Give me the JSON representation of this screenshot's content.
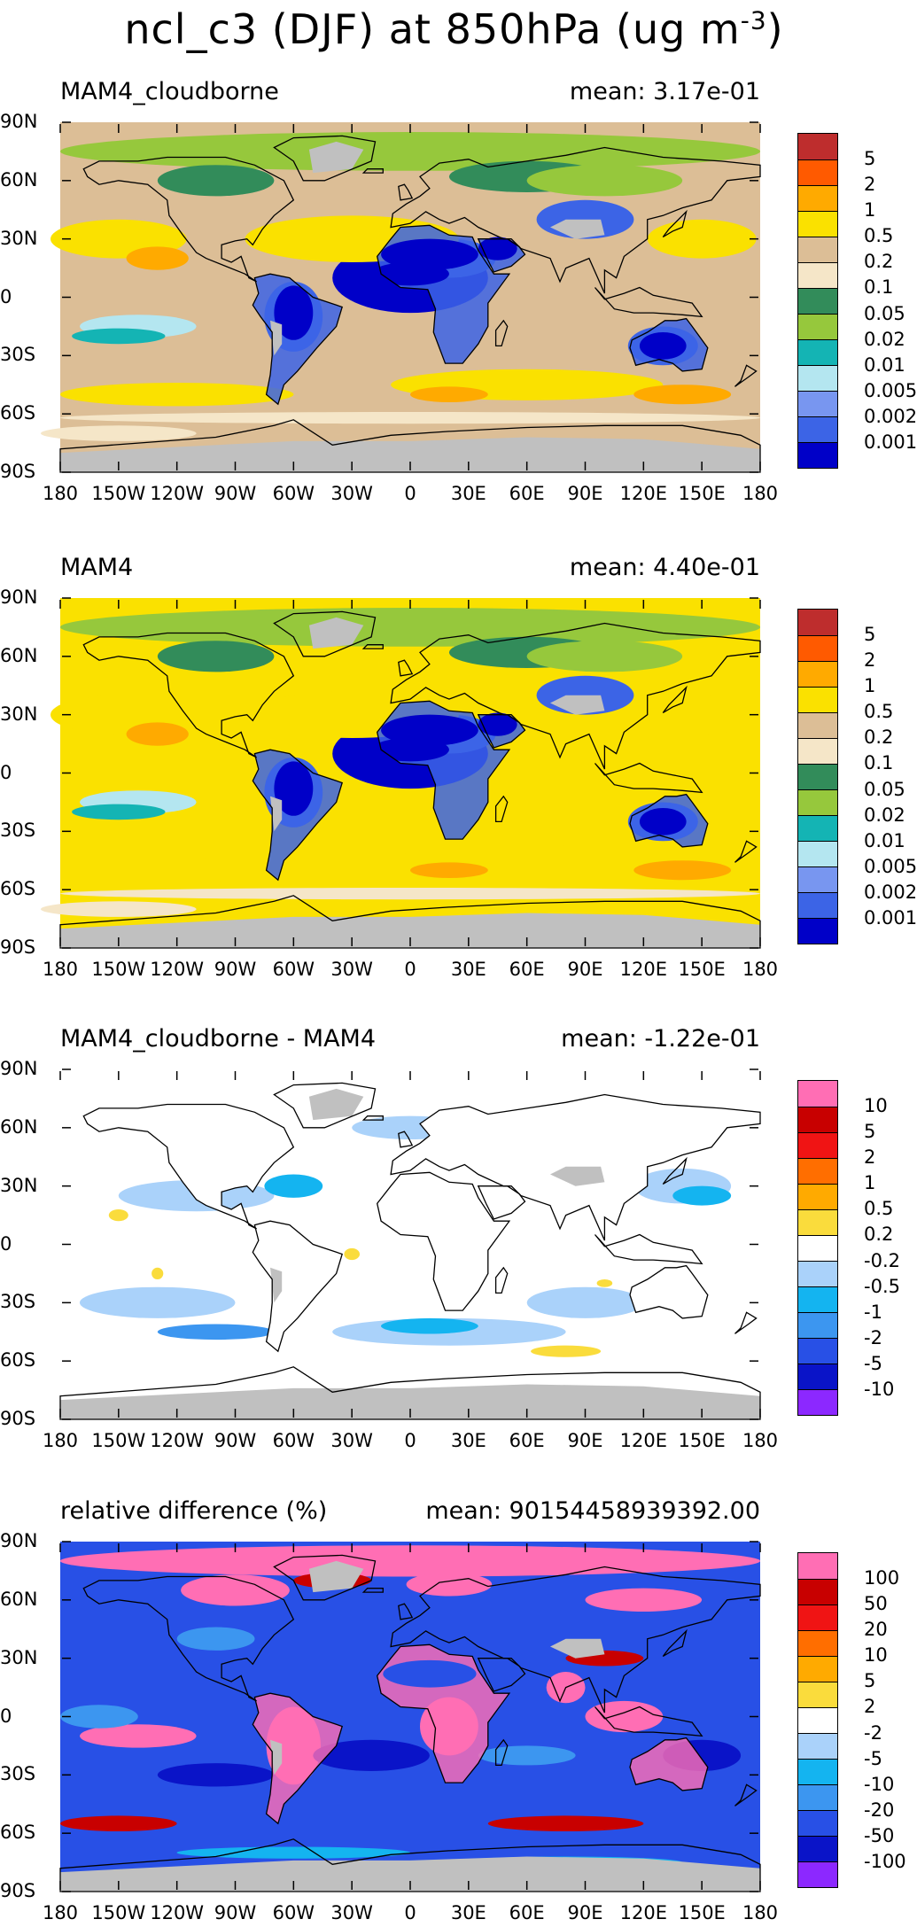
{
  "title": {
    "text": "ncl_c3 (DJF) at 850hPa (ug m",
    "sup": "-3",
    "close": ")"
  },
  "axes": {
    "lat_labels": [
      "90N",
      "60N",
      "30N",
      "0",
      "30S",
      "60S",
      "90S"
    ],
    "lon_labels": [
      "180",
      "150W",
      "120W",
      "90W",
      "60W",
      "30W",
      "0",
      "30E",
      "60E",
      "90E",
      "120E",
      "150E",
      "180"
    ]
  },
  "colors": {
    "land_missing": "#c0c0c0",
    "coast": "#000000"
  },
  "panels": [
    {
      "name": "MAM4_cloudborne",
      "mean": "mean: 3.17e-01",
      "type": "absolute",
      "levels": [
        "0.001",
        "0.002",
        "0.005",
        "0.01",
        "0.02",
        "0.05",
        "0.1",
        "0.2",
        "0.5",
        "1",
        "2",
        "5"
      ],
      "colors": [
        "#0000c8",
        "#3c64e6",
        "#7896f0",
        "#b4e6f0",
        "#14b4b4",
        "#96c83c",
        "#328c5a",
        "#f5e6c8",
        "#dcbe96",
        "#fae100",
        "#ffaa00",
        "#ff5a00",
        "#be2d2d"
      ],
      "background": "#dcbe96"
    },
    {
      "name": "MAM4",
      "mean": "mean: 4.40e-01",
      "type": "absolute",
      "levels": [
        "0.001",
        "0.002",
        "0.005",
        "0.01",
        "0.02",
        "0.05",
        "0.1",
        "0.2",
        "0.5",
        "1",
        "2",
        "5"
      ],
      "colors": [
        "#0000c8",
        "#3c64e6",
        "#7896f0",
        "#b4e6f0",
        "#14b4b4",
        "#96c83c",
        "#328c5a",
        "#f5e6c8",
        "#dcbe96",
        "#fae100",
        "#ffaa00",
        "#ff5a00",
        "#be2d2d"
      ],
      "background": "#fae100"
    },
    {
      "name": "MAM4_cloudborne - MAM4",
      "mean": "mean: -1.22e-01",
      "type": "difference",
      "levels": [
        "-10",
        "-5",
        "-2",
        "-1",
        "-0.5",
        "-0.2",
        "0.2",
        "0.5",
        "1",
        "2",
        "5",
        "10"
      ],
      "colors": [
        "#8c28ff",
        "#0a14c8",
        "#2850e6",
        "#3c96f0",
        "#14b4f0",
        "#aad2fa",
        "#ffffff",
        "#fadc3c",
        "#ffaa00",
        "#ff6e00",
        "#f01414",
        "#c80000",
        "#ff6eb4"
      ],
      "background": "#ffffff"
    },
    {
      "name": "relative difference (%)",
      "mean": "mean: 90154458939392.00",
      "type": "relative",
      "levels": [
        "-100",
        "-50",
        "-20",
        "-10",
        "-5",
        "-2",
        "2",
        "5",
        "10",
        "20",
        "50",
        "100"
      ],
      "colors": [
        "#8c28ff",
        "#0a14c8",
        "#2850e6",
        "#3c96f0",
        "#14b4f0",
        "#aad2fa",
        "#ffffff",
        "#fadc3c",
        "#ffaa00",
        "#ff6e00",
        "#f01414",
        "#c80000",
        "#ff6eb4"
      ],
      "background": "#2850e6"
    }
  ]
}
